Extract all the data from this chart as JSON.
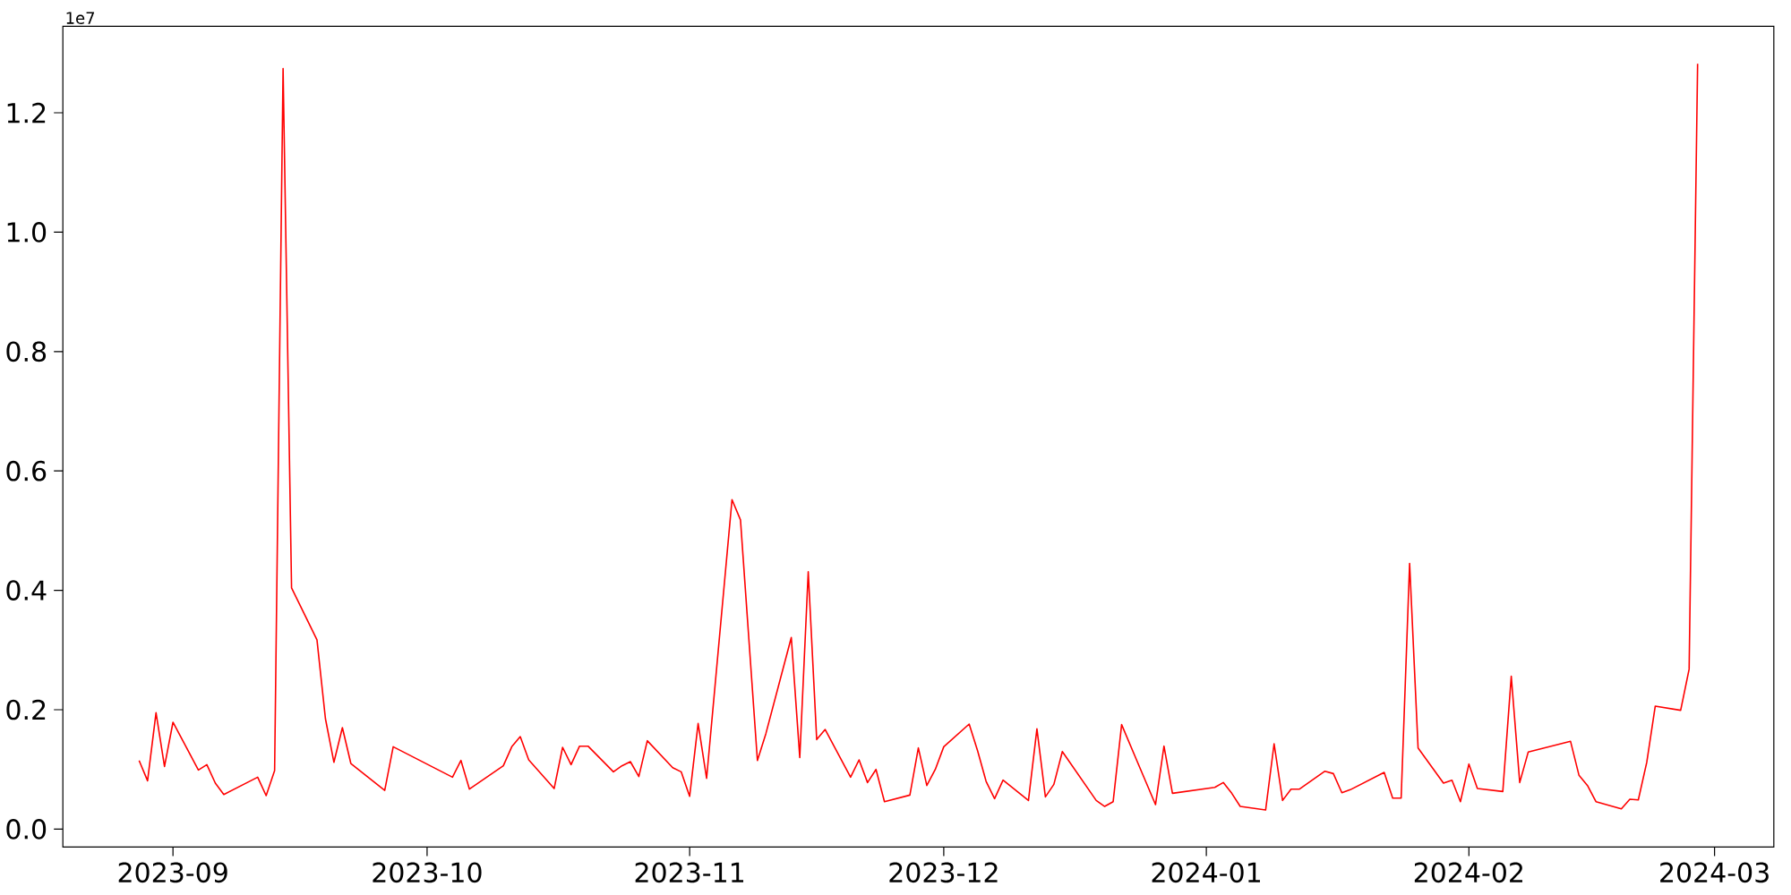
{
  "chart_data": {
    "type": "line",
    "color": "#ff0000",
    "x": [
      "2023-08-28",
      "2023-08-29",
      "2023-08-30",
      "2023-08-31",
      "2023-09-01",
      "2023-09-04",
      "2023-09-05",
      "2023-09-06",
      "2023-09-07",
      "2023-09-11",
      "2023-09-12",
      "2023-09-13",
      "2023-09-14",
      "2023-09-15",
      "2023-09-18",
      "2023-09-19",
      "2023-09-20",
      "2023-09-21",
      "2023-09-22",
      "2023-09-25",
      "2023-09-26",
      "2023-09-27",
      "2023-10-04",
      "2023-10-05",
      "2023-10-06",
      "2023-10-10",
      "2023-10-11",
      "2023-10-12",
      "2023-10-13",
      "2023-10-16",
      "2023-10-17",
      "2023-10-18",
      "2023-10-19",
      "2023-10-20",
      "2023-10-23",
      "2023-10-24",
      "2023-10-25",
      "2023-10-26",
      "2023-10-27",
      "2023-10-30",
      "2023-10-31",
      "2023-11-01",
      "2023-11-02",
      "2023-11-03",
      "2023-11-06",
      "2023-11-07",
      "2023-11-09",
      "2023-11-10",
      "2023-11-13",
      "2023-11-14",
      "2023-11-15",
      "2023-11-16",
      "2023-11-17",
      "2023-11-20",
      "2023-11-21",
      "2023-11-22",
      "2023-11-23",
      "2023-11-24",
      "2023-11-27",
      "2023-11-28",
      "2023-11-29",
      "2023-11-30",
      "2023-12-01",
      "2023-12-04",
      "2023-12-05",
      "2023-12-06",
      "2023-12-07",
      "2023-12-08",
      "2023-12-11",
      "2023-12-12",
      "2023-12-13",
      "2023-12-14",
      "2023-12-15",
      "2023-12-19",
      "2023-12-20",
      "2023-12-21",
      "2023-12-22",
      "2023-12-26",
      "2023-12-27",
      "2023-12-28",
      "2024-01-02",
      "2024-01-03",
      "2024-01-04",
      "2024-01-05",
      "2024-01-08",
      "2024-01-09",
      "2024-01-10",
      "2024-01-11",
      "2024-01-12",
      "2024-01-15",
      "2024-01-16",
      "2024-01-17",
      "2024-01-18",
      "2024-01-22",
      "2024-01-23",
      "2024-01-24",
      "2024-01-25",
      "2024-01-26",
      "2024-01-29",
      "2024-01-30",
      "2024-01-31",
      "2024-02-01",
      "2024-02-02",
      "2024-02-05",
      "2024-02-06",
      "2024-02-07",
      "2024-02-08",
      "2024-02-13",
      "2024-02-14",
      "2024-02-15",
      "2024-02-16",
      "2024-02-19",
      "2024-02-20",
      "2024-02-21",
      "2024-02-22",
      "2024-02-23",
      "2024-02-26",
      "2024-02-27",
      "2024-02-28"
    ],
    "values": [
      0.115,
      0.081,
      0.195,
      0.105,
      0.179,
      0.099,
      0.108,
      0.077,
      0.058,
      0.087,
      0.056,
      0.098,
      1.274,
      0.404,
      0.317,
      0.185,
      0.112,
      0.17,
      0.11,
      0.076,
      0.065,
      0.138,
      0.087,
      0.115,
      0.067,
      0.106,
      0.138,
      0.155,
      0.116,
      0.068,
      0.137,
      0.108,
      0.139,
      0.139,
      0.096,
      0.106,
      0.113,
      0.088,
      0.148,
      0.103,
      0.096,
      0.055,
      0.177,
      0.085,
      0.552,
      0.518,
      0.115,
      0.16,
      0.321,
      0.12,
      0.431,
      0.15,
      0.167,
      0.087,
      0.116,
      0.078,
      0.1,
      0.046,
      0.057,
      0.136,
      0.073,
      0.1,
      0.138,
      0.176,
      0.131,
      0.08,
      0.051,
      0.082,
      0.048,
      0.168,
      0.054,
      0.075,
      0.13,
      0.048,
      0.038,
      0.046,
      0.175,
      0.041,
      0.139,
      0.06,
      0.07,
      0.078,
      0.06,
      0.038,
      0.032,
      0.143,
      0.048,
      0.067,
      0.067,
      0.097,
      0.093,
      0.061,
      0.066,
      0.095,
      0.052,
      0.052,
      0.445,
      0.136,
      0.077,
      0.082,
      0.046,
      0.109,
      0.068,
      0.063,
      0.256,
      0.078,
      0.129,
      0.147,
      0.09,
      0.073,
      0.046,
      0.034,
      0.05,
      0.049,
      0.112,
      0.206,
      0.199,
      0.268,
      1.282
    ],
    "xlim": [
      "2023-08-19",
      "2024-03-08"
    ],
    "xticks": [
      "2023-09",
      "2023-10",
      "2023-11",
      "2023-12",
      "2024-01",
      "2024-02",
      "2024-03"
    ],
    "ylim": [
      -0.03,
      1.345
    ],
    "yticks": [
      {
        "value": 0,
        "label": "0.0"
      },
      0.2,
      0.4,
      0.6,
      0.8,
      {
        "value": 1.0,
        "label": "1.0"
      },
      1.2
    ],
    "annotations": [
      "1e7"
    ]
  }
}
